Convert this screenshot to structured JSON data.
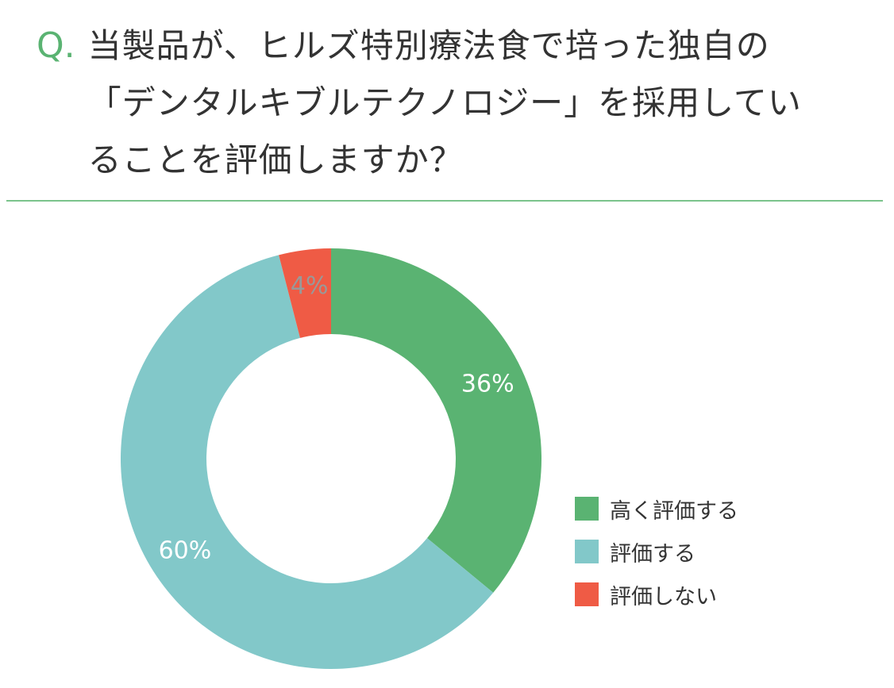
{
  "question": {
    "prefix": "Q.",
    "text": "当製品が、ヒルズ特別療法食で培った独自の「デンタルキブルテクノロジー」を採用していることを評価しますか？"
  },
  "colors": {
    "accent": "#5ab372",
    "text": "#333333",
    "divider": "#7bc48c"
  },
  "chart_data": {
    "type": "pie",
    "donut": true,
    "categories": [
      "高く評価する",
      "評価する",
      "評価しない"
    ],
    "values": [
      36,
      60,
      4
    ],
    "value_labels": [
      "36%",
      "60%",
      "4%"
    ],
    "colors": [
      "#5ab372",
      "#82c8c9",
      "#ef5b45"
    ],
    "label_colors": [
      "#ffffff",
      "#ffffff",
      "#999999"
    ],
    "legend_position": "right",
    "start_angle_deg": 0,
    "direction": "clockwise"
  },
  "legend": {
    "items": [
      {
        "label": "高く評価する",
        "color": "#5ab372"
      },
      {
        "label": "評価する",
        "color": "#82c8c9"
      },
      {
        "label": "評価しない",
        "color": "#ef5b45"
      }
    ]
  }
}
